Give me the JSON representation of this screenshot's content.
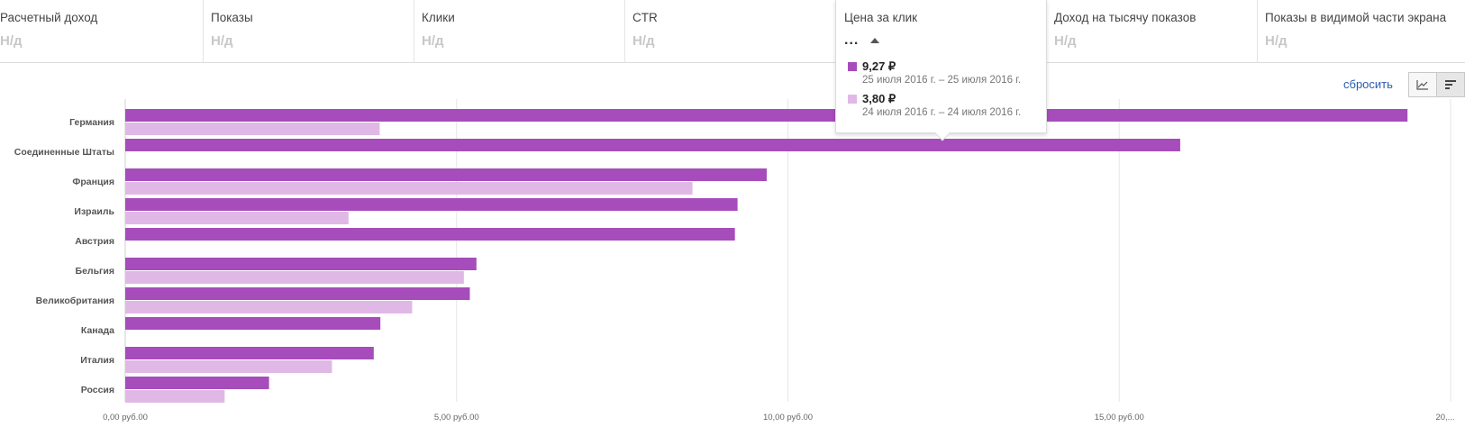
{
  "metrics": [
    {
      "label": "Расчетный доход",
      "value": "Н/д"
    },
    {
      "label": "Показы",
      "value": "Н/д"
    },
    {
      "label": "Клики",
      "value": "Н/д"
    },
    {
      "label": "CTR",
      "value": "Н/д"
    },
    {
      "label": "Цена за клик",
      "value": "..."
    },
    {
      "label": "Доход на тысячу показов",
      "value": "Н/д"
    },
    {
      "label": "Показы в видимой части экрана",
      "value": "Н/д"
    }
  ],
  "popup": {
    "title": "Цена за клик",
    "dots": "...",
    "entries": [
      {
        "value": "9,27 ₽",
        "dates": "25 июля 2016 г. – 25 июля 2016 г.",
        "color": "#a64cbb"
      },
      {
        "value": "3,80 ₽",
        "dates": "24 июля 2016 г. – 24 июля 2016 г.",
        "color": "#e0b8e6"
      }
    ]
  },
  "controls": {
    "reset_label": "сбросить",
    "line_view_icon": "line-chart-icon",
    "bar_view_icon": "bar-chart-icon"
  },
  "chart_data": {
    "type": "bar",
    "orientation": "horizontal",
    "categories": [
      "Германия",
      "Соединенные Штаты",
      "Франция",
      "Израиль",
      "Австрия",
      "Бельгия",
      "Великобритания",
      "Канада",
      "Италия",
      "Россия"
    ],
    "series": [
      {
        "values": [
          19.35,
          15.92,
          9.68,
          9.24,
          9.2,
          5.3,
          5.2,
          3.85,
          3.75,
          2.17
        ],
        "color": "#a64cbb"
      },
      {
        "values": [
          3.84,
          null,
          8.56,
          3.37,
          null,
          5.11,
          4.33,
          null,
          3.12,
          1.5
        ],
        "color": "#e0b8e6"
      }
    ],
    "xlim": [
      0,
      20
    ],
    "ticks": [
      "0,00 руб.00",
      "5,00 руб.00",
      "10,00 руб.00",
      "15,00 руб.00",
      "20,..."
    ],
    "grid": true
  }
}
